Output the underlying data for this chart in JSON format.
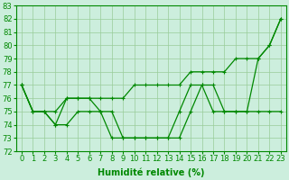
{
  "x": [
    0,
    1,
    2,
    3,
    4,
    5,
    6,
    7,
    8,
    9,
    10,
    11,
    12,
    13,
    14,
    15,
    16,
    17,
    18,
    19,
    20,
    21,
    22,
    23
  ],
  "line1": [
    77,
    75,
    75,
    75,
    76,
    76,
    76,
    76,
    76,
    76,
    77,
    77,
    77,
    77,
    77,
    78,
    78,
    78,
    78,
    79,
    79,
    79,
    80,
    82
  ],
  "line2": [
    77,
    75,
    75,
    74,
    76,
    76,
    76,
    75,
    75,
    73,
    73,
    73,
    73,
    73,
    75,
    77,
    77,
    75,
    75,
    75,
    75,
    79,
    80,
    82
  ],
  "line3": [
    77,
    75,
    75,
    74,
    74,
    75,
    75,
    75,
    73,
    73,
    73,
    73,
    73,
    73,
    73,
    75,
    77,
    77,
    75,
    75,
    75,
    75,
    75,
    75
  ],
  "bg_color": "#cceedd",
  "line_color": "#008800",
  "grid_color": "#99cc99",
  "xlabel": "Humidité relative (%)",
  "ylim": [
    72,
    83
  ],
  "xlim": [
    -0.5,
    23.5
  ],
  "xlabel_fontsize": 7,
  "tick_fontsize": 6,
  "yticks": [
    72,
    73,
    74,
    75,
    76,
    77,
    78,
    79,
    80,
    81,
    82,
    83
  ],
  "xticks": [
    0,
    1,
    2,
    3,
    4,
    5,
    6,
    7,
    8,
    9,
    10,
    11,
    12,
    13,
    14,
    15,
    16,
    17,
    18,
    19,
    20,
    21,
    22,
    23
  ]
}
